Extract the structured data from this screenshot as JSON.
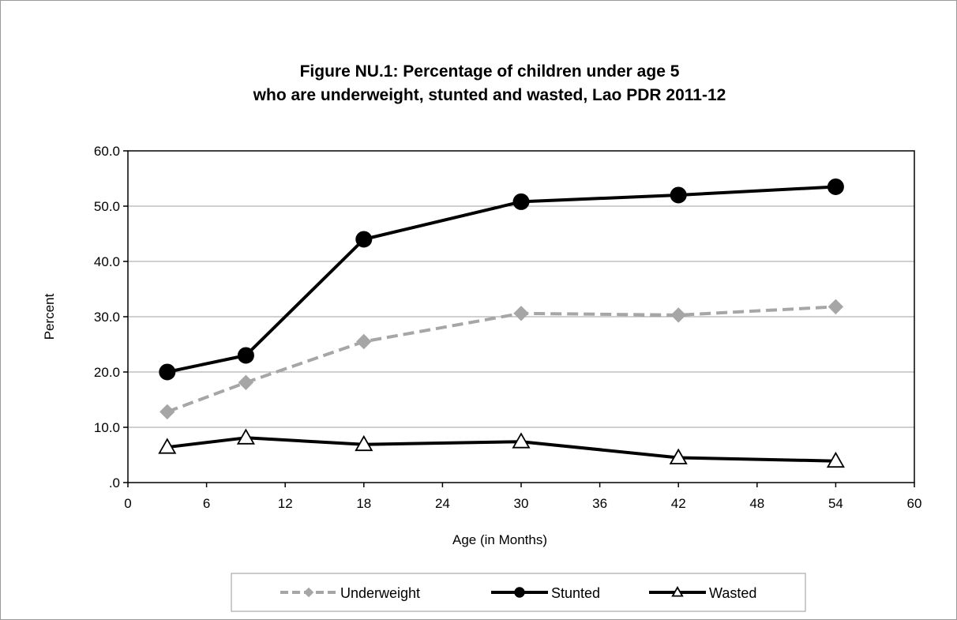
{
  "chart_data": {
    "type": "line",
    "title_line1": "Figure NU.1: Percentage of children under age 5",
    "title_line2": "who are underweight, stunted and wasted, Lao PDR 2011-12",
    "xlabel": "Age (in Months)",
    "ylabel": "Percent",
    "xlim": [
      0,
      60
    ],
    "ylim": [
      0,
      60
    ],
    "x_ticks": [
      "0",
      "6",
      "12",
      "18",
      "24",
      "30",
      "36",
      "42",
      "48",
      "54",
      "60"
    ],
    "y_ticks": [
      ".0",
      "10.0",
      "20.0",
      "30.0",
      "40.0",
      "50.0",
      "60.0"
    ],
    "grid": true,
    "legend_position": "bottom",
    "series": [
      {
        "name": "Underweight",
        "color": "#a6a6a6",
        "line_style": "dashed",
        "marker": "diamond",
        "points": [
          [
            3,
            12.8
          ],
          [
            9,
            18.1
          ],
          [
            18,
            25.5
          ],
          [
            30,
            30.6
          ],
          [
            42,
            30.3
          ],
          [
            54,
            31.8
          ]
        ]
      },
      {
        "name": "Stunted",
        "color": "#000000",
        "line_style": "solid",
        "marker": "circle",
        "points": [
          [
            3,
            20.0
          ],
          [
            9,
            23.0
          ],
          [
            18,
            44.0
          ],
          [
            30,
            50.8
          ],
          [
            42,
            52.0
          ],
          [
            54,
            53.5
          ]
        ]
      },
      {
        "name": "Wasted",
        "color": "#000000",
        "line_style": "solid",
        "marker": "triangle",
        "points": [
          [
            3,
            6.4
          ],
          [
            9,
            8.1
          ],
          [
            18,
            6.9
          ],
          [
            30,
            7.4
          ],
          [
            42,
            4.5
          ],
          [
            54,
            3.9
          ]
        ]
      }
    ]
  }
}
